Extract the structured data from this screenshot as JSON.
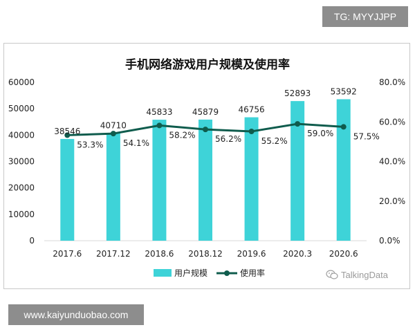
{
  "badges": {
    "top_right": "TG: MYYJJPP",
    "bottom_left": "www.kaiyunduobao.com"
  },
  "watermark": {
    "text": "TalkingData",
    "icon": "wechat-icon"
  },
  "colors": {
    "bar": "#3ed3d8",
    "line": "#0f5c4d",
    "text": "#222222"
  },
  "chart_data": {
    "type": "bar",
    "title": "手机网络游戏用户规模及使用率",
    "categories": [
      "2017.6",
      "2017.12",
      "2018.6",
      "2018.12",
      "2019.6",
      "2020.3",
      "2020.6"
    ],
    "series": [
      {
        "name": "用户规模",
        "type": "bar",
        "axis": "left",
        "values": [
          38546,
          40710,
          45833,
          45879,
          46756,
          52893,
          53592
        ],
        "labels": [
          "38546",
          "40710",
          "45833",
          "45879",
          "46756",
          "52893",
          "53592"
        ]
      },
      {
        "name": "使用率",
        "type": "line",
        "axis": "right",
        "values": [
          53.3,
          54.1,
          58.2,
          56.2,
          55.2,
          59.0,
          57.5
        ],
        "labels": [
          "53.3%",
          "54.1%",
          "58.2%",
          "56.2%",
          "55.2%",
          "59.0%",
          "57.5%"
        ]
      }
    ],
    "y_left": {
      "ylim": [
        0,
        60000
      ],
      "ticks": [
        "0",
        "10000",
        "20000",
        "30000",
        "40000",
        "50000",
        "60000"
      ]
    },
    "y_right": {
      "ylim": [
        0,
        80
      ],
      "ticks": [
        "0.0%",
        "20.0%",
        "40.0%",
        "60.0%",
        "80.0%"
      ]
    },
    "legend": {
      "position": "bottom",
      "items": [
        "用户规模",
        "使用率"
      ]
    },
    "grid": false
  }
}
